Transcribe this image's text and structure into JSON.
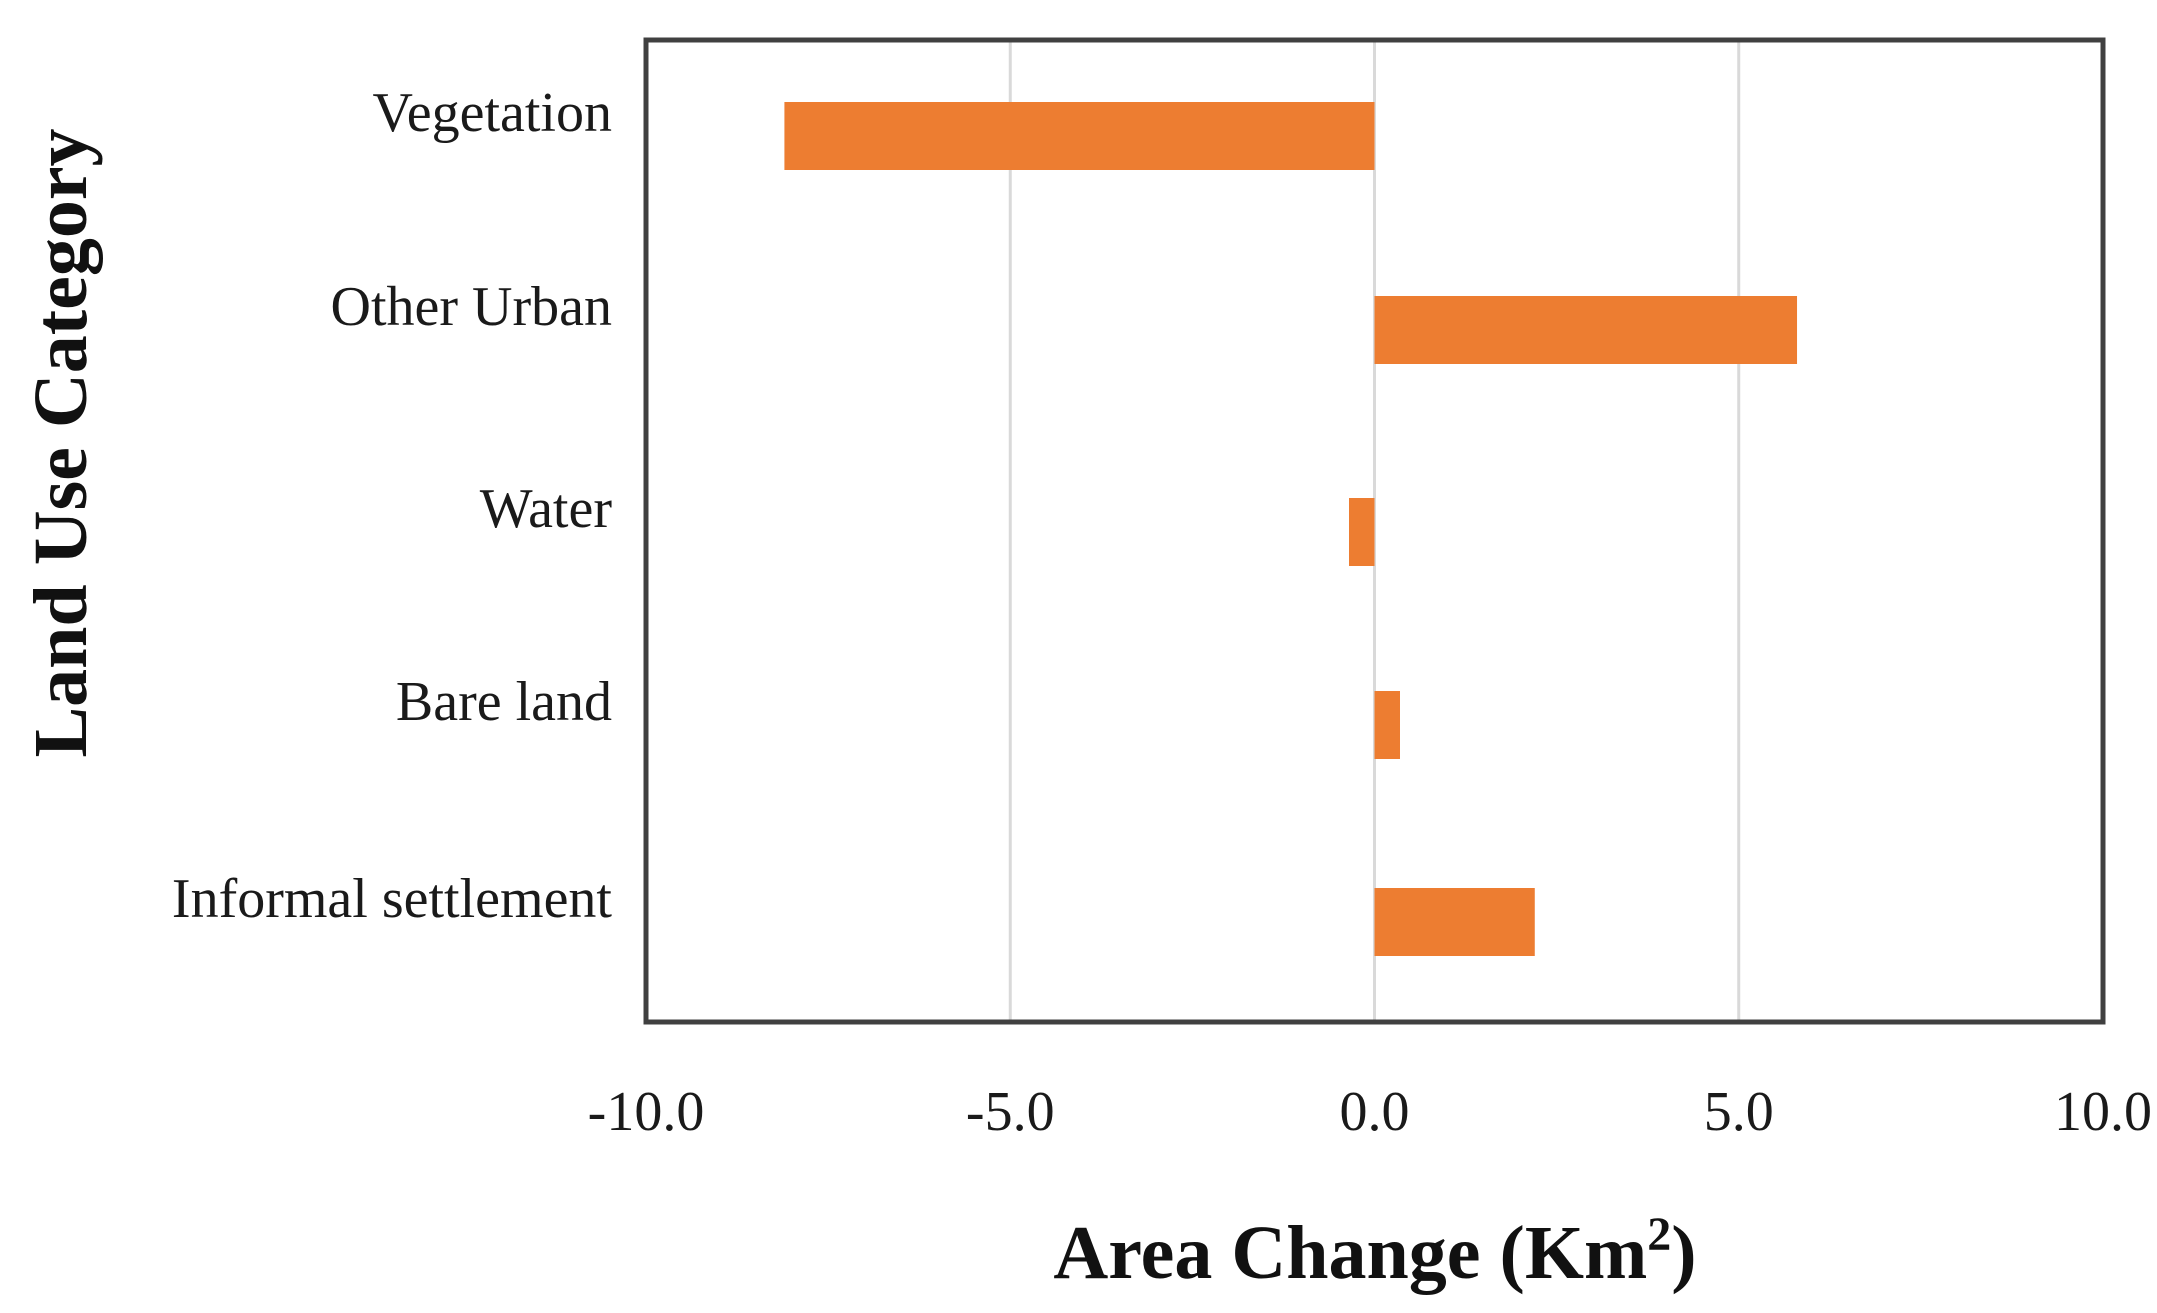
{
  "chart_data": {
    "type": "bar",
    "orientation": "horizontal",
    "title": "",
    "xlabel_main": "Area Change (Km",
    "xlabel_sup": "2",
    "xlabel_close": ")",
    "ylabel": "Land Use Category",
    "categories": [
      "Vegetation",
      "Other Urban",
      "Water",
      "Bare land",
      "Informal settlement"
    ],
    "values": [
      -8.1,
      5.8,
      -0.35,
      0.35,
      2.2
    ],
    "xlim": [
      -10.0,
      10.0
    ],
    "xticks": [
      "-10.0",
      "-5.0",
      "0.0",
      "5.0",
      "10.0"
    ],
    "grid": "vertical",
    "bar_color": "#ED7D31",
    "grid_color": "#D9D9D9",
    "frame_color": "#404040"
  }
}
